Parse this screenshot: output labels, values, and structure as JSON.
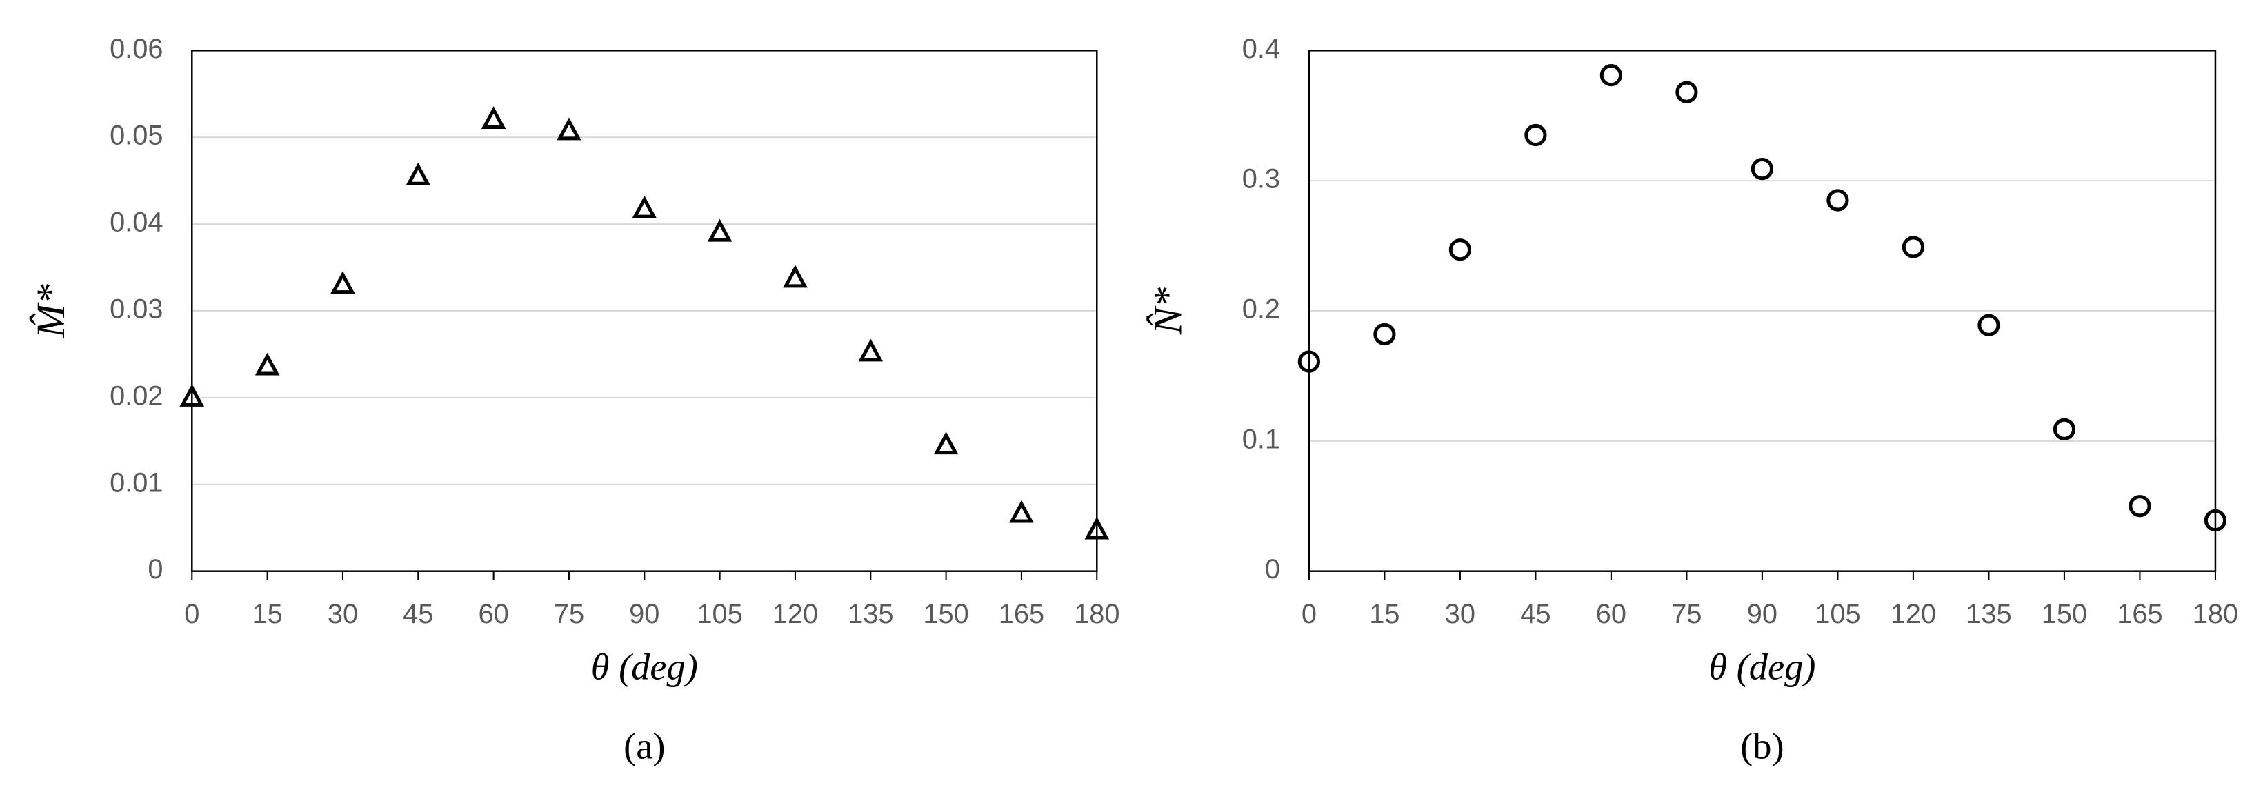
{
  "chart_data": [
    {
      "type": "scatter",
      "ylabel": "M̂*",
      "xlabel": "θ  (deg)",
      "caption": "(a)",
      "x": [
        0,
        15,
        30,
        45,
        60,
        75,
        90,
        105,
        120,
        135,
        150,
        165,
        180
      ],
      "values": [
        0.02,
        0.0236,
        0.033,
        0.0455,
        0.052,
        0.0507,
        0.0417,
        0.039,
        0.0337,
        0.0252,
        0.0145,
        0.0066,
        0.0047
      ],
      "marker": "triangle",
      "color": "#000000",
      "xlim": [
        0,
        180
      ],
      "xticks": [
        0,
        15,
        30,
        45,
        60,
        75,
        90,
        105,
        120,
        135,
        150,
        165,
        180
      ],
      "ylim": [
        0,
        0.06
      ],
      "yticks": [
        0,
        0.01,
        0.02,
        0.03,
        0.04,
        0.05,
        0.06
      ],
      "grid": true
    },
    {
      "type": "scatter",
      "ylabel": "N̂*",
      "xlabel": "θ  (deg)",
      "caption": "(b)",
      "x": [
        0,
        15,
        30,
        45,
        60,
        75,
        90,
        105,
        120,
        135,
        150,
        165,
        180
      ],
      "values": [
        0.161,
        0.182,
        0.247,
        0.335,
        0.381,
        0.368,
        0.309,
        0.285,
        0.249,
        0.189,
        0.109,
        0.05,
        0.039
      ],
      "marker": "circle",
      "color": "#000000",
      "xlim": [
        0,
        180
      ],
      "xticks": [
        0,
        15,
        30,
        45,
        60,
        75,
        90,
        105,
        120,
        135,
        150,
        165,
        180
      ],
      "ylim": [
        0,
        0.4
      ],
      "yticks": [
        0,
        0.1,
        0.2,
        0.3,
        0.4
      ],
      "grid": true
    }
  ]
}
